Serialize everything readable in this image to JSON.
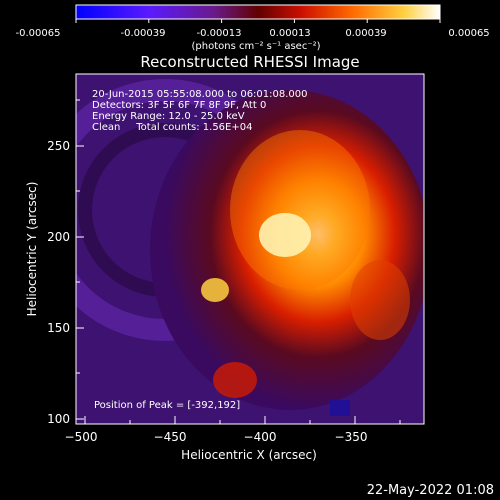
{
  "colorbar": {
    "tick_labels": [
      "-0.00065",
      "-0.00039",
      "-0.00013",
      "0.00013",
      "0.00039",
      "0.00065"
    ],
    "units_label": "(photons cm⁻² s⁻¹ asec⁻²)",
    "colors": [
      "#0000ff",
      "#5a1aff",
      "#7a1a9a",
      "#cc0000",
      "#ff4400",
      "#ff9a00",
      "#ffe060",
      "#ffffff"
    ]
  },
  "title": "Reconstructed RHESSI Image",
  "info_lines": [
    "20-Jun-2015 05:55:08.000 to 06:01:08.000",
    "Detectors: 3F 5F 6F 7F 8F 9F, Att 0",
    "Energy Range: 12.0 - 25.0 keV",
    "Clean     Total counts: 1.56E+04"
  ],
  "peak_label": "Position of Peak = [-392,192]",
  "axes": {
    "xlabel": "Heliocentric X (arcsec)",
    "ylabel": "Heliocentric Y (arcsec)",
    "xticks": [
      "−500",
      "−450",
      "−400",
      "−350"
    ],
    "yticks": [
      "100",
      "150",
      "200",
      "250"
    ]
  },
  "footer_date": "22-May-2022 01:08"
}
